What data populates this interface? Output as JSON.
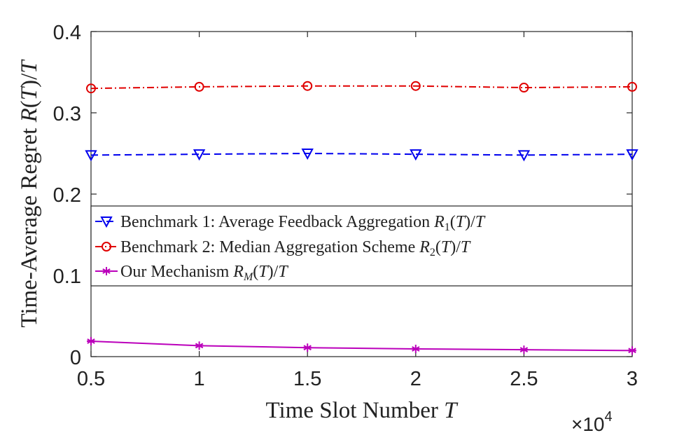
{
  "chart_data": {
    "type": "line",
    "title": "",
    "xlabel": "Time Slot Number T",
    "ylabel": "Time-Average Regret R(T)/T",
    "x": [
      0.5,
      1,
      1.5,
      2,
      2.5,
      3
    ],
    "x_ticks": [
      0.5,
      1,
      1.5,
      2,
      2.5,
      3
    ],
    "x_tick_labels": [
      "0.5",
      "1",
      "1.5",
      "2",
      "2.5",
      "3"
    ],
    "x_multiplier": "×10",
    "x_multiplier_exponent": "4",
    "y_ticks": [
      0,
      0.1,
      0.2,
      0.3,
      0.4
    ],
    "y_tick_labels": [
      "0",
      "0.1",
      "0.2",
      "0.3",
      "0.4"
    ],
    "xlim": [
      0.5,
      3
    ],
    "ylim": [
      0,
      0.4
    ],
    "grid": false,
    "legend_position": "middle-left",
    "series": [
      {
        "name": "Benchmark 1: Average Feedback Aggregation R1(T)/T",
        "color": "#0000ee",
        "line_style": "dashed",
        "marker": "triangle-down",
        "values": [
          0.248,
          0.249,
          0.25,
          0.249,
          0.248,
          0.249
        ]
      },
      {
        "name": "Benchmark 2: Median Aggregation Scheme R2(T)/T",
        "color": "#e00000",
        "line_style": "dash-dot",
        "marker": "circle",
        "values": [
          0.33,
          0.332,
          0.333,
          0.333,
          0.331,
          0.332
        ]
      },
      {
        "name": "Our Mechanism RM(T)/T",
        "color": "#bb00bb",
        "line_style": "solid",
        "marker": "asterisk",
        "values": [
          0.019,
          0.0135,
          0.011,
          0.0095,
          0.0085,
          0.0075
        ]
      }
    ]
  }
}
